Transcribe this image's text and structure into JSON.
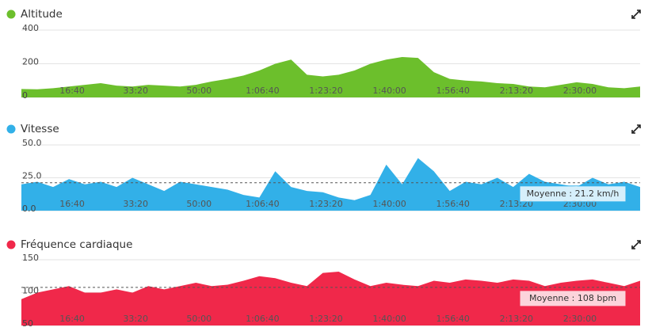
{
  "chart_data": [
    {
      "type": "area",
      "title": "Altitude",
      "color": "#6cbf2c",
      "x": [
        200,
        450,
        700,
        950,
        1200,
        1450,
        1700,
        1950,
        2200,
        2450,
        2700,
        2950,
        3200,
        3450,
        3700,
        3950,
        4200,
        4450,
        4700,
        4950,
        5200,
        5450,
        5700,
        5950,
        6200,
        6450,
        6700,
        6950,
        7200,
        7450,
        7700,
        7950,
        8200,
        8450,
        8700,
        8950,
        9200,
        9450,
        9700,
        9950
      ],
      "values": [
        50,
        48,
        55,
        65,
        75,
        85,
        70,
        65,
        75,
        70,
        65,
        75,
        95,
        110,
        130,
        160,
        200,
        225,
        135,
        125,
        135,
        160,
        200,
        225,
        240,
        235,
        150,
        110,
        100,
        95,
        85,
        80,
        65,
        60,
        75,
        90,
        80,
        60,
        55,
        65
      ],
      "xlim": [
        200,
        9950
      ],
      "ylim": [
        0,
        400
      ],
      "yticks": [
        0,
        200,
        400
      ],
      "xticks": [
        {
          "value": 1000,
          "label": "16:40"
        },
        {
          "value": 2000,
          "label": "33:20"
        },
        {
          "value": 3000,
          "label": "50:00"
        },
        {
          "value": 4000,
          "label": "1:06:40"
        },
        {
          "value": 5000,
          "label": "1:23:20"
        },
        {
          "value": 6000,
          "label": "1:40:00"
        },
        {
          "value": 7000,
          "label": "1:56:40"
        },
        {
          "value": 8000,
          "label": "2:13:20"
        },
        {
          "value": 9000,
          "label": "2:30:00"
        }
      ],
      "grid": true
    },
    {
      "type": "area",
      "title": "Vitesse",
      "color": "#32b0e8",
      "x": [
        200,
        450,
        700,
        950,
        1200,
        1450,
        1700,
        1950,
        2200,
        2450,
        2700,
        2950,
        3200,
        3450,
        3700,
        3950,
        4200,
        4450,
        4700,
        4950,
        5200,
        5450,
        5700,
        5950,
        6200,
        6450,
        6700,
        6950,
        7200,
        7450,
        7700,
        7950,
        8200,
        8450,
        8700,
        8950,
        9200,
        9450,
        9700,
        9950
      ],
      "values": [
        20,
        22,
        18,
        24,
        20,
        22,
        18,
        25,
        20,
        15,
        22,
        20,
        18,
        16,
        12,
        10,
        30,
        18,
        15,
        14,
        10,
        8,
        12,
        35,
        20,
        40,
        30,
        15,
        22,
        20,
        25,
        18,
        28,
        22,
        20,
        18,
        25,
        20,
        22,
        18
      ],
      "xlim": [
        200,
        9950
      ],
      "ylim": [
        0,
        50
      ],
      "yticks": [
        {
          "value": 0,
          "label": "0.0"
        },
        {
          "value": 25,
          "label": "25.0"
        },
        {
          "value": 50,
          "label": "50.0"
        }
      ],
      "xticks": [
        {
          "value": 1000,
          "label": "16:40"
        },
        {
          "value": 2000,
          "label": "33:20"
        },
        {
          "value": 3000,
          "label": "50:00"
        },
        {
          "value": 4000,
          "label": "1:06:40"
        },
        {
          "value": 5000,
          "label": "1:23:20"
        },
        {
          "value": 6000,
          "label": "1:40:00"
        },
        {
          "value": 7000,
          "label": "1:56:40"
        },
        {
          "value": 8000,
          "label": "2:13:20"
        },
        {
          "value": 9000,
          "label": "2:30:00"
        }
      ],
      "grid": true,
      "average": 21.2,
      "average_label": "Moyenne : 21.2 km/h"
    },
    {
      "type": "area",
      "title": "Fréquence cardiaque",
      "color": "#f0284a",
      "x": [
        200,
        450,
        700,
        950,
        1200,
        1450,
        1700,
        1950,
        2200,
        2450,
        2700,
        2950,
        3200,
        3450,
        3700,
        3950,
        4200,
        4450,
        4700,
        4950,
        5200,
        5450,
        5700,
        5950,
        6200,
        6450,
        6700,
        6950,
        7200,
        7450,
        7700,
        7950,
        8200,
        8450,
        8700,
        8950,
        9200,
        9450,
        9700,
        9950
      ],
      "values": [
        90,
        100,
        105,
        110,
        100,
        100,
        105,
        100,
        110,
        105,
        110,
        115,
        110,
        112,
        118,
        125,
        122,
        115,
        110,
        130,
        132,
        120,
        110,
        115,
        112,
        110,
        118,
        115,
        120,
        118,
        115,
        120,
        118,
        110,
        115,
        118,
        120,
        115,
        110,
        118
      ],
      "xlim": [
        200,
        9950
      ],
      "ylim": [
        50,
        150
      ],
      "yticks": [
        50,
        100,
        150
      ],
      "xticks": [
        {
          "value": 1000,
          "label": "16:40"
        },
        {
          "value": 2000,
          "label": "33:20"
        },
        {
          "value": 3000,
          "label": "50:00"
        },
        {
          "value": 4000,
          "label": "1:06:40"
        },
        {
          "value": 5000,
          "label": "1:23:20"
        },
        {
          "value": 6000,
          "label": "1:40:00"
        },
        {
          "value": 7000,
          "label": "1:56:40"
        },
        {
          "value": 8000,
          "label": "2:13:20"
        },
        {
          "value": 9000,
          "label": "2:30:00"
        }
      ],
      "grid": true,
      "average": 108,
      "average_label": "Moyenne : 108 bpm"
    }
  ]
}
